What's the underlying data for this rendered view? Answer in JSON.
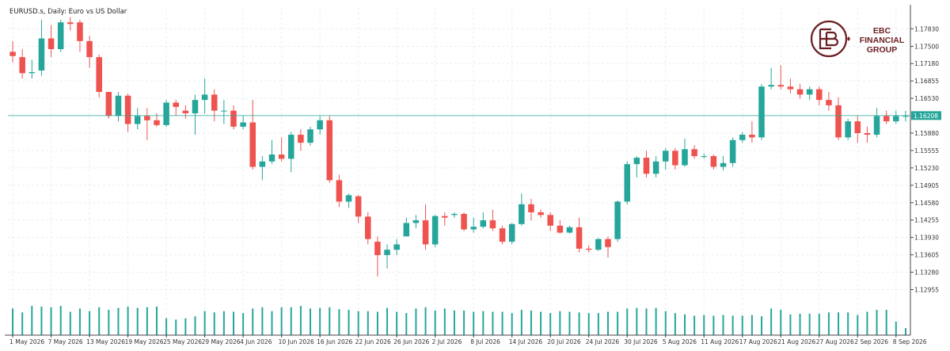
{
  "chart_data": {
    "type": "candlestick",
    "title": "EURUSD.s, Daily:  Euro vs US Dollar",
    "symbol": "EURUSD.s",
    "timeframe": "Daily",
    "description": "Euro vs US Dollar",
    "current_price": 1.16208,
    "current_price_label": "1.16208",
    "ylim": [
      1.1277,
      1.1822
    ],
    "y_ticks": [
      "1.17830",
      "1.17500",
      "1.17180",
      "1.16855",
      "1.16530",
      "1.15880",
      "1.15555",
      "1.15230",
      "1.14905",
      "1.14580",
      "1.14255",
      "1.13930",
      "1.13605",
      "1.13280",
      "1.12955"
    ],
    "x_tick_labels": [
      {
        "label": "1 May 2026",
        "index": 0
      },
      {
        "label": "7 May 2026",
        "index": 4
      },
      {
        "label": "13 May 2026",
        "index": 8
      },
      {
        "label": "19 May 2026",
        "index": 12
      },
      {
        "label": "25 May 2026",
        "index": 16
      },
      {
        "label": "29 May 2026",
        "index": 20
      },
      {
        "label": "4 Jun 2026",
        "index": 24
      },
      {
        "label": "10 Jun 2026",
        "index": 28
      },
      {
        "label": "16 Jun 2026",
        "index": 32
      },
      {
        "label": "22 Jun 2026",
        "index": 36
      },
      {
        "label": "26 Jun 2026",
        "index": 40
      },
      {
        "label": "2 Jul 2026",
        "index": 44
      },
      {
        "label": "8 Jul 2026",
        "index": 48
      },
      {
        "label": "14 Jul 2026",
        "index": 52
      },
      {
        "label": "20 Jul 2026",
        "index": 56
      },
      {
        "label": "24 Jul 2026",
        "index": 60
      },
      {
        "label": "30 Jul 2026",
        "index": 64
      },
      {
        "label": "5 Aug 2026",
        "index": 68
      },
      {
        "label": "11 Aug 2026",
        "index": 72
      },
      {
        "label": "17 Aug 2026",
        "index": 76
      },
      {
        "label": "21 Aug 2026",
        "index": 80
      },
      {
        "label": "27 Aug 2026",
        "index": 84
      },
      {
        "label": "2 Sep 2026",
        "index": 88
      },
      {
        "label": "8 Sep 2026",
        "index": 92
      }
    ],
    "candles": [
      {
        "o": 1.174,
        "h": 1.176,
        "l": 1.172,
        "c": 1.1732
      },
      {
        "o": 1.173,
        "h": 1.1745,
        "l": 1.169,
        "c": 1.17
      },
      {
        "o": 1.17,
        "h": 1.1725,
        "l": 1.169,
        "c": 1.1702
      },
      {
        "o": 1.1705,
        "h": 1.18,
        "l": 1.1695,
        "c": 1.1765
      },
      {
        "o": 1.1765,
        "h": 1.179,
        "l": 1.173,
        "c": 1.1745
      },
      {
        "o": 1.1745,
        "h": 1.18,
        "l": 1.174,
        "c": 1.1795
      },
      {
        "o": 1.1795,
        "h": 1.1805,
        "l": 1.178,
        "c": 1.1792
      },
      {
        "o": 1.1795,
        "h": 1.18,
        "l": 1.174,
        "c": 1.176
      },
      {
        "o": 1.176,
        "h": 1.177,
        "l": 1.171,
        "c": 1.173
      },
      {
        "o": 1.173,
        "h": 1.1735,
        "l": 1.1655,
        "c": 1.1665
      },
      {
        "o": 1.1665,
        "h": 1.1665,
        "l": 1.1615,
        "c": 1.162
      },
      {
        "o": 1.162,
        "h": 1.1665,
        "l": 1.161,
        "c": 1.1658
      },
      {
        "o": 1.1658,
        "h": 1.1662,
        "l": 1.159,
        "c": 1.1605
      },
      {
        "o": 1.1605,
        "h": 1.1635,
        "l": 1.1595,
        "c": 1.162
      },
      {
        "o": 1.162,
        "h": 1.1635,
        "l": 1.1575,
        "c": 1.1612
      },
      {
        "o": 1.1612,
        "h": 1.1625,
        "l": 1.16,
        "c": 1.1603
      },
      {
        "o": 1.1603,
        "h": 1.165,
        "l": 1.16,
        "c": 1.1645
      },
      {
        "o": 1.1645,
        "h": 1.165,
        "l": 1.162,
        "c": 1.1637
      },
      {
        "o": 1.163,
        "h": 1.164,
        "l": 1.1615,
        "c": 1.1625
      },
      {
        "o": 1.1625,
        "h": 1.166,
        "l": 1.1585,
        "c": 1.165
      },
      {
        "o": 1.165,
        "h": 1.169,
        "l": 1.1625,
        "c": 1.166
      },
      {
        "o": 1.166,
        "h": 1.167,
        "l": 1.161,
        "c": 1.163
      },
      {
        "o": 1.163,
        "h": 1.165,
        "l": 1.1605,
        "c": 1.163
      },
      {
        "o": 1.163,
        "h": 1.164,
        "l": 1.1595,
        "c": 1.16
      },
      {
        "o": 1.16,
        "h": 1.162,
        "l": 1.1595,
        "c": 1.1608
      },
      {
        "o": 1.1608,
        "h": 1.165,
        "l": 1.152,
        "c": 1.1525
      },
      {
        "o": 1.1525,
        "h": 1.1545,
        "l": 1.15,
        "c": 1.1535
      },
      {
        "o": 1.1535,
        "h": 1.1575,
        "l": 1.153,
        "c": 1.1548
      },
      {
        "o": 1.1548,
        "h": 1.158,
        "l": 1.1535,
        "c": 1.154
      },
      {
        "o": 1.154,
        "h": 1.159,
        "l": 1.1515,
        "c": 1.1585
      },
      {
        "o": 1.1585,
        "h": 1.1595,
        "l": 1.1555,
        "c": 1.157
      },
      {
        "o": 1.157,
        "h": 1.16,
        "l": 1.1565,
        "c": 1.1595
      },
      {
        "o": 1.1595,
        "h": 1.162,
        "l": 1.1585,
        "c": 1.1612
      },
      {
        "o": 1.1612,
        "h": 1.162,
        "l": 1.1495,
        "c": 1.15
      },
      {
        "o": 1.15,
        "h": 1.151,
        "l": 1.145,
        "c": 1.146
      },
      {
        "o": 1.146,
        "h": 1.1475,
        "l": 1.1448,
        "c": 1.1472
      },
      {
        "o": 1.147,
        "h": 1.1472,
        "l": 1.142,
        "c": 1.1432
      },
      {
        "o": 1.1432,
        "h": 1.144,
        "l": 1.138,
        "c": 1.139
      },
      {
        "o": 1.1385,
        "h": 1.1395,
        "l": 1.132,
        "c": 1.136
      },
      {
        "o": 1.136,
        "h": 1.138,
        "l": 1.1335,
        "c": 1.137
      },
      {
        "o": 1.137,
        "h": 1.139,
        "l": 1.136,
        "c": 1.138
      },
      {
        "o": 1.1395,
        "h": 1.143,
        "l": 1.1395,
        "c": 1.142
      },
      {
        "o": 1.142,
        "h": 1.1435,
        "l": 1.141,
        "c": 1.1425
      },
      {
        "o": 1.1425,
        "h": 1.1455,
        "l": 1.137,
        "c": 1.138
      },
      {
        "o": 1.138,
        "h": 1.1435,
        "l": 1.1375,
        "c": 1.1433
      },
      {
        "o": 1.1433,
        "h": 1.144,
        "l": 1.1415,
        "c": 1.143
      },
      {
        "o": 1.1435,
        "h": 1.144,
        "l": 1.143,
        "c": 1.1437
      },
      {
        "o": 1.1437,
        "h": 1.144,
        "l": 1.1405,
        "c": 1.1408
      },
      {
        "o": 1.1408,
        "h": 1.143,
        "l": 1.1402,
        "c": 1.1413
      },
      {
        "o": 1.1413,
        "h": 1.144,
        "l": 1.141,
        "c": 1.1425
      },
      {
        "o": 1.1425,
        "h": 1.1445,
        "l": 1.1405,
        "c": 1.141
      },
      {
        "o": 1.141,
        "h": 1.1415,
        "l": 1.138,
        "c": 1.1385
      },
      {
        "o": 1.1385,
        "h": 1.142,
        "l": 1.138,
        "c": 1.1418
      },
      {
        "o": 1.1418,
        "h": 1.1475,
        "l": 1.1415,
        "c": 1.1455
      },
      {
        "o": 1.1455,
        "h": 1.1465,
        "l": 1.1425,
        "c": 1.144
      },
      {
        "o": 1.144,
        "h": 1.1445,
        "l": 1.143,
        "c": 1.1435
      },
      {
        "o": 1.1435,
        "h": 1.144,
        "l": 1.1405,
        "c": 1.1415
      },
      {
        "o": 1.1415,
        "h": 1.1425,
        "l": 1.14,
        "c": 1.1402
      },
      {
        "o": 1.1402,
        "h": 1.1415,
        "l": 1.14,
        "c": 1.1412
      },
      {
        "o": 1.1412,
        "h": 1.143,
        "l": 1.1365,
        "c": 1.1372
      },
      {
        "o": 1.1372,
        "h": 1.1378,
        "l": 1.1365,
        "c": 1.137
      },
      {
        "o": 1.137,
        "h": 1.1392,
        "l": 1.1368,
        "c": 1.139
      },
      {
        "o": 1.139,
        "h": 1.1395,
        "l": 1.1355,
        "c": 1.1375
      },
      {
        "o": 1.139,
        "h": 1.1462,
        "l": 1.1385,
        "c": 1.146
      },
      {
        "o": 1.146,
        "h": 1.1535,
        "l": 1.1455,
        "c": 1.153
      },
      {
        "o": 1.153,
        "h": 1.1545,
        "l": 1.1505,
        "c": 1.1542
      },
      {
        "o": 1.1542,
        "h": 1.1555,
        "l": 1.1505,
        "c": 1.1512
      },
      {
        "o": 1.1512,
        "h": 1.1545,
        "l": 1.1505,
        "c": 1.1535
      },
      {
        "o": 1.1535,
        "h": 1.156,
        "l": 1.152,
        "c": 1.1555
      },
      {
        "o": 1.1555,
        "h": 1.156,
        "l": 1.152,
        "c": 1.1528
      },
      {
        "o": 1.1528,
        "h": 1.1578,
        "l": 1.1525,
        "c": 1.1558
      },
      {
        "o": 1.1558,
        "h": 1.1565,
        "l": 1.154,
        "c": 1.1545
      },
      {
        "o": 1.1545,
        "h": 1.155,
        "l": 1.154,
        "c": 1.1545
      },
      {
        "o": 1.1545,
        "h": 1.1548,
        "l": 1.152,
        "c": 1.1525
      },
      {
        "o": 1.1525,
        "h": 1.1545,
        "l": 1.1518,
        "c": 1.1532
      },
      {
        "o": 1.1532,
        "h": 1.158,
        "l": 1.1525,
        "c": 1.1575
      },
      {
        "o": 1.1575,
        "h": 1.159,
        "l": 1.157,
        "c": 1.1585
      },
      {
        "o": 1.1585,
        "h": 1.161,
        "l": 1.157,
        "c": 1.158
      },
      {
        "o": 1.158,
        "h": 1.168,
        "l": 1.1575,
        "c": 1.1675
      },
      {
        "o": 1.1675,
        "h": 1.171,
        "l": 1.167,
        "c": 1.1678
      },
      {
        "o": 1.1678,
        "h": 1.1715,
        "l": 1.167,
        "c": 1.1675
      },
      {
        "o": 1.1675,
        "h": 1.169,
        "l": 1.1662,
        "c": 1.167
      },
      {
        "o": 1.167,
        "h": 1.168,
        "l": 1.1652,
        "c": 1.166
      },
      {
        "o": 1.166,
        "h": 1.1675,
        "l": 1.165,
        "c": 1.167
      },
      {
        "o": 1.167,
        "h": 1.1675,
        "l": 1.164,
        "c": 1.165
      },
      {
        "o": 1.165,
        "h": 1.1665,
        "l": 1.163,
        "c": 1.164
      },
      {
        "o": 1.164,
        "h": 1.1655,
        "l": 1.1575,
        "c": 1.158
      },
      {
        "o": 1.158,
        "h": 1.1615,
        "l": 1.1575,
        "c": 1.161
      },
      {
        "o": 1.161,
        "h": 1.162,
        "l": 1.157,
        "c": 1.1588
      },
      {
        "o": 1.1588,
        "h": 1.16,
        "l": 1.157,
        "c": 1.1585
      },
      {
        "o": 1.1585,
        "h": 1.1635,
        "l": 1.158,
        "c": 1.162
      },
      {
        "o": 1.162,
        "h": 1.163,
        "l": 1.1605,
        "c": 1.161
      },
      {
        "o": 1.161,
        "h": 1.163,
        "l": 1.1605,
        "c": 1.162
      },
      {
        "o": 1.162,
        "h": 1.163,
        "l": 1.161,
        "c": 1.162
      }
    ],
    "volume_relative": [
      0.82,
      0.7,
      0.9,
      0.88,
      0.86,
      0.9,
      0.72,
      0.82,
      0.74,
      0.86,
      0.78,
      0.84,
      0.88,
      0.84,
      0.86,
      0.88,
      0.52,
      0.48,
      0.52,
      0.58,
      0.74,
      0.7,
      0.74,
      0.72,
      0.68,
      0.82,
      0.86,
      0.74,
      0.86,
      0.86,
      0.9,
      0.82,
      0.84,
      0.86,
      0.8,
      0.78,
      0.74,
      0.74,
      0.72,
      0.84,
      0.72,
      0.68,
      0.82,
      0.86,
      0.76,
      0.82,
      0.76,
      0.76,
      0.72,
      0.74,
      0.72,
      0.72,
      0.68,
      0.78,
      0.76,
      0.72,
      0.68,
      0.74,
      0.72,
      0.7,
      0.68,
      0.68,
      0.72,
      0.72,
      0.82,
      0.84,
      0.82,
      0.84,
      0.74,
      0.68,
      0.64,
      0.6,
      0.62,
      0.6,
      0.62,
      0.6,
      0.6,
      0.62,
      0.58,
      0.82,
      0.78,
      0.64,
      0.66,
      0.66,
      0.66,
      0.7,
      0.7,
      0.7,
      0.62,
      0.72,
      0.78,
      0.78,
      0.42,
      0.22
    ],
    "colors": {
      "bull": "#26a69a",
      "bear": "#ef5350",
      "volume": "#26a69a",
      "price_line": "#26a69a",
      "grid": "#e9edf0",
      "axis_text": "#333333"
    },
    "grid": true,
    "legend": "none"
  },
  "logo": {
    "name": "EBC FINANCIAL GROUP",
    "line1": "EBC",
    "line2": "FINANCIAL",
    "line3": "GROUP",
    "color": "#6b1e22"
  }
}
